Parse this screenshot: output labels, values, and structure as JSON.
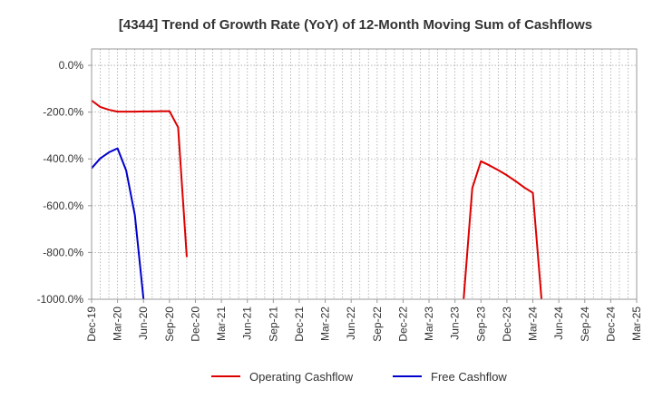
{
  "chart_data": {
    "type": "line",
    "title": "[4344]  Trend of Growth Rate (YoY) of 12-Month Moving Sum of Cashflows",
    "xlabel": "",
    "ylabel": "",
    "ylim": [
      -1000,
      70
    ],
    "y_ticks": [
      0,
      -200,
      -400,
      -600,
      -800,
      -1000
    ],
    "y_tick_labels": [
      "0.0%",
      "-200.0%",
      "-400.0%",
      "-600.0%",
      "-800.0%",
      "-1000.0%"
    ],
    "x_ticks": [
      "Dec-19",
      "Mar-20",
      "Jun-20",
      "Sep-20",
      "Dec-20",
      "Mar-21",
      "Jun-21",
      "Sep-21",
      "Dec-21",
      "Mar-22",
      "Jun-22",
      "Sep-22",
      "Dec-22",
      "Mar-23",
      "Jun-23",
      "Sep-23",
      "Dec-23",
      "Mar-24",
      "Jun-24",
      "Sep-24",
      "Dec-24",
      "Mar-25"
    ],
    "grid": true,
    "legend_position": "bottom",
    "series": [
      {
        "name": "Operating Cashflow",
        "color": "#dd0000",
        "segments": [
          [
            {
              "x": "2019-12",
              "y": -150
            },
            {
              "x": "2020-01",
              "y": -178
            },
            {
              "x": "2020-02",
              "y": -190
            },
            {
              "x": "2020-03",
              "y": -198
            },
            {
              "x": "2020-04",
              "y": -198
            },
            {
              "x": "2020-05",
              "y": -198
            },
            {
              "x": "2020-06",
              "y": -197
            },
            {
              "x": "2020-07",
              "y": -197
            },
            {
              "x": "2020-08",
              "y": -196
            },
            {
              "x": "2020-09",
              "y": -196
            },
            {
              "x": "2020-10",
              "y": -265
            },
            {
              "x": "2020-11",
              "y": -820
            }
          ],
          [
            {
              "x": "2023-07",
              "y": -1000
            },
            {
              "x": "2023-08",
              "y": -525
            },
            {
              "x": "2023-09",
              "y": -410
            },
            {
              "x": "2023-10",
              "y": -428
            },
            {
              "x": "2023-11",
              "y": -448
            },
            {
              "x": "2023-12",
              "y": -470
            },
            {
              "x": "2024-01",
              "y": -495
            },
            {
              "x": "2024-02",
              "y": -522
            },
            {
              "x": "2024-03",
              "y": -545
            },
            {
              "x": "2024-04",
              "y": -1000
            }
          ]
        ]
      },
      {
        "name": "Free Cashflow",
        "color": "#0000cc",
        "segments": [
          [
            {
              "x": "2019-12",
              "y": -440
            },
            {
              "x": "2020-01",
              "y": -398
            },
            {
              "x": "2020-02",
              "y": -372
            },
            {
              "x": "2020-03",
              "y": -355
            },
            {
              "x": "2020-04",
              "y": -450
            },
            {
              "x": "2020-05",
              "y": -640
            },
            {
              "x": "2020-06",
              "y": -1000
            }
          ]
        ]
      }
    ]
  }
}
